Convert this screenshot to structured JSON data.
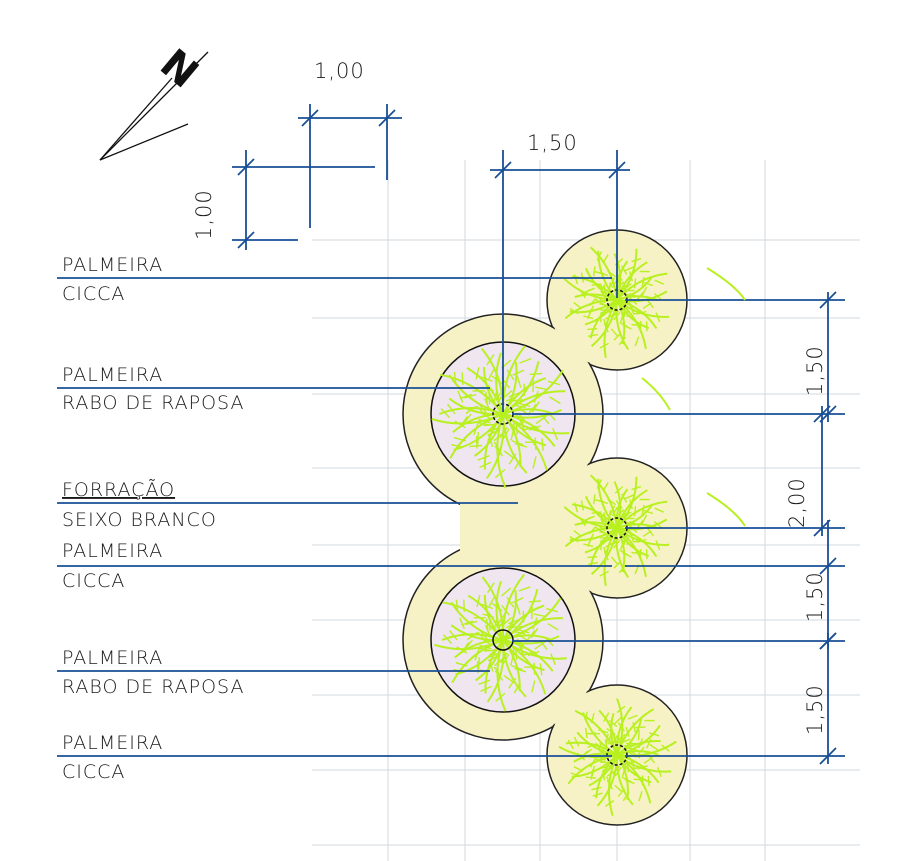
{
  "north": {
    "letter": "N"
  },
  "scale_dims": {
    "horizontal": "1,00",
    "vertical": "1,00"
  },
  "spacing_dim": "1,50",
  "right_dims": [
    "1,50",
    "2,00",
    "1,50",
    "1,50"
  ],
  "labels": [
    {
      "line1": "PALMEIRA",
      "line2": "CICCA"
    },
    {
      "line1": "PALMEIRA",
      "line2": "RABO DE RAPOSA"
    },
    {
      "line1": "FORRAÇÃO",
      "line2": "SEIXO BRANCO"
    },
    {
      "line1": "PALMEIRA",
      "line2": "CICCA"
    },
    {
      "line1": "PALMEIRA",
      "line2": "RABO DE RAPOSA"
    },
    {
      "line1": "PALMEIRA",
      "line2": "CICCA"
    }
  ],
  "colors": {
    "bed_fill": "#f6f2c6",
    "plant_green": "#b8f020",
    "leader_blue": "#1a4f96",
    "grid": "#d2d8de",
    "gravel": "#efe6ef"
  }
}
